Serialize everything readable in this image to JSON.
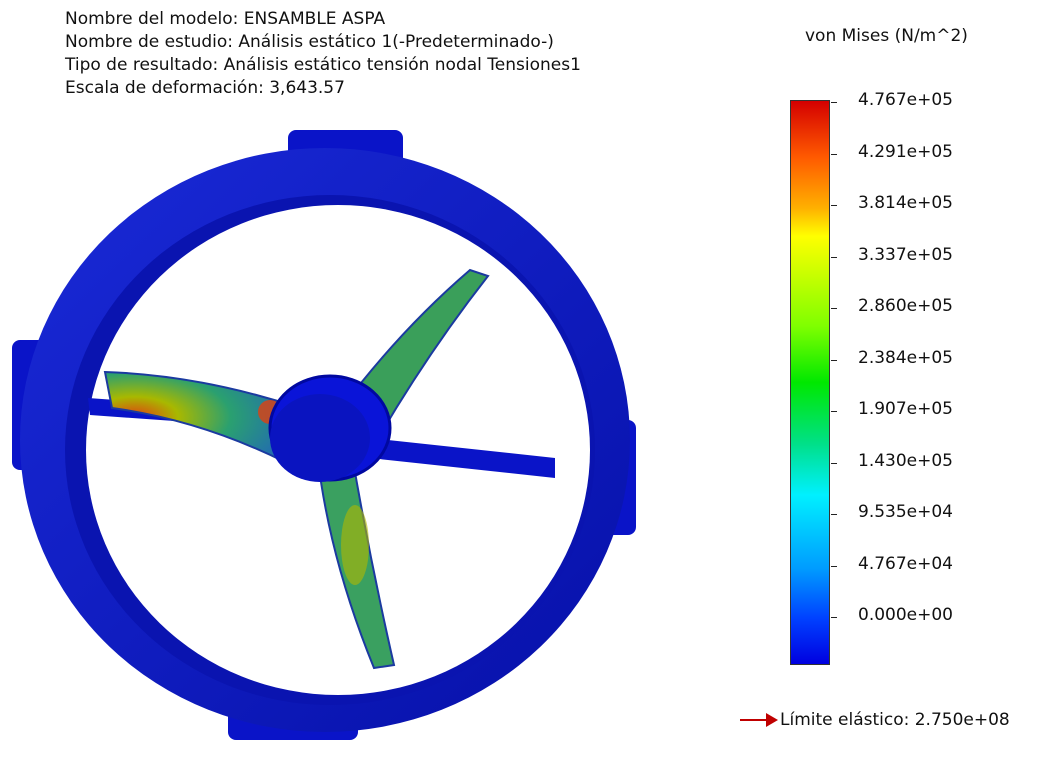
{
  "info": {
    "model_name": "Nombre del modelo: ENSAMBLE ASPA",
    "study_name": "Nombre de estudio: Análisis estático 1(-Predeterminado-)",
    "result_type": "Tipo de resultado: Análisis estático tensión nodal Tensiones1",
    "deformation_scale": "Escala de deformación: 3,643.57"
  },
  "legend": {
    "title": "von Mises (N/m^2)",
    "ticks": [
      "4.767e+05",
      "4.291e+05",
      "3.814e+05",
      "3.337e+05",
      "2.860e+05",
      "2.384e+05",
      "1.907e+05",
      "1.430e+05",
      "9.535e+04",
      "4.767e+04",
      "0.000e+00"
    ],
    "colors": {
      "max": "#d40000",
      "mid": "#00e800",
      "min": "#0000e0"
    }
  },
  "yield": {
    "label": "Límite elástico: 2.750e+08",
    "arrow_color": "#c00000"
  },
  "model": {
    "ring_color": "#0a14c8",
    "icon": "fan-assembly-model"
  }
}
